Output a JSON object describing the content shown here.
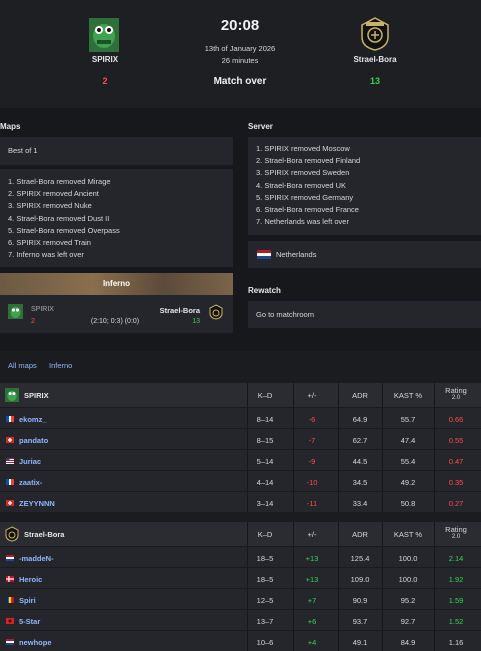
{
  "match": {
    "time": "20:08",
    "date": "13th of January 2026",
    "duration": "26 minutes",
    "status": "Match over",
    "team1": {
      "name": "SPIRIX",
      "score": "2"
    },
    "team2": {
      "name": "Strael-Bora",
      "score": "13"
    }
  },
  "maps_section": {
    "title": "Maps",
    "format": "Best of 1",
    "veto": [
      "1. Strael-Bora removed Mirage",
      "2. SPIRIX removed Ancient",
      "3. SPIRIX removed Nuke",
      "4. Strael-Bora removed Dust II",
      "5. Strael-Bora removed Overpass",
      "6. SPIRIX removed Train",
      "7. Inferno was left over"
    ],
    "map_card": {
      "map": "Inferno",
      "team1": "SPIRIX",
      "team2": "Strael-Bora",
      "score1": "2",
      "score2": "13",
      "halves": "(2:10; 0:3) (0:0)"
    }
  },
  "server_section": {
    "title": "Server",
    "veto": [
      "1. SPIRIX removed Moscow",
      "2. Strael-Bora removed Finland",
      "3. SPIRIX removed Sweden",
      "4. Strael-Bora removed UK",
      "5. SPIRIX removed Germany",
      "6. Strael-Bora removed France",
      "7. Netherlands was left over"
    ],
    "location": "Netherlands"
  },
  "rewatch_section": {
    "title": "Rewatch",
    "link": "Go to matchroom"
  },
  "stats_tabs": [
    "All maps",
    "Inferno"
  ],
  "table_headers": {
    "kd": "K–D",
    "pm": "+/-",
    "adr": "ADR",
    "kast": "KAST %",
    "rating": "Rating",
    "rating_sub": "2.0"
  },
  "team1_stats": {
    "name": "SPIRIX",
    "players": [
      {
        "name": "ekomz_",
        "flag": "fr",
        "kd": "8–14",
        "pm": "-6",
        "adr": "64.9",
        "kast": "55.7",
        "rating": "0.66"
      },
      {
        "name": "pandato",
        "flag": "ch",
        "kd": "8–15",
        "pm": "-7",
        "adr": "62.7",
        "kast": "47.4",
        "rating": "0.55"
      },
      {
        "name": "Juriac",
        "flag": "us",
        "kd": "5–14",
        "pm": "-9",
        "adr": "44.5",
        "kast": "55.4",
        "rating": "0.47"
      },
      {
        "name": "zaatix-",
        "flag": "fr",
        "kd": "4–14",
        "pm": "-10",
        "adr": "34.5",
        "kast": "49.2",
        "rating": "0.35"
      },
      {
        "name": "ZEYYNNN",
        "flag": "ch",
        "kd": "3–14",
        "pm": "-11",
        "adr": "33.4",
        "kast": "50.8",
        "rating": "0.27"
      }
    ]
  },
  "team2_stats": {
    "name": "Strael-Bora",
    "players": [
      {
        "name": "-maddeN-",
        "flag": "nl",
        "kd": "18–5",
        "pm": "+13",
        "adr": "125.4",
        "kast": "100.0",
        "rating": "2.14"
      },
      {
        "name": "Heroic",
        "flag": "dk",
        "kd": "18–5",
        "pm": "+13",
        "adr": "109.0",
        "kast": "100.0",
        "rating": "1.92"
      },
      {
        "name": "Spiri",
        "flag": "ro",
        "kd": "12–5",
        "pm": "+7",
        "adr": "90.9",
        "kast": "95.2",
        "rating": "1.59"
      },
      {
        "name": "5-Star",
        "flag": "al",
        "kd": "13–7",
        "pm": "+6",
        "adr": "93.7",
        "kast": "92.7",
        "rating": "1.52"
      },
      {
        "name": "newhope",
        "flag": "nl",
        "kd": "10–6",
        "pm": "+4",
        "adr": "49.1",
        "kast": "84.9",
        "rating": "1.16"
      }
    ]
  },
  "colors": {
    "positive": "#39d353",
    "negative": "#ff4b4b",
    "link": "#8fb8ff",
    "neutral": "#d6d8db"
  }
}
